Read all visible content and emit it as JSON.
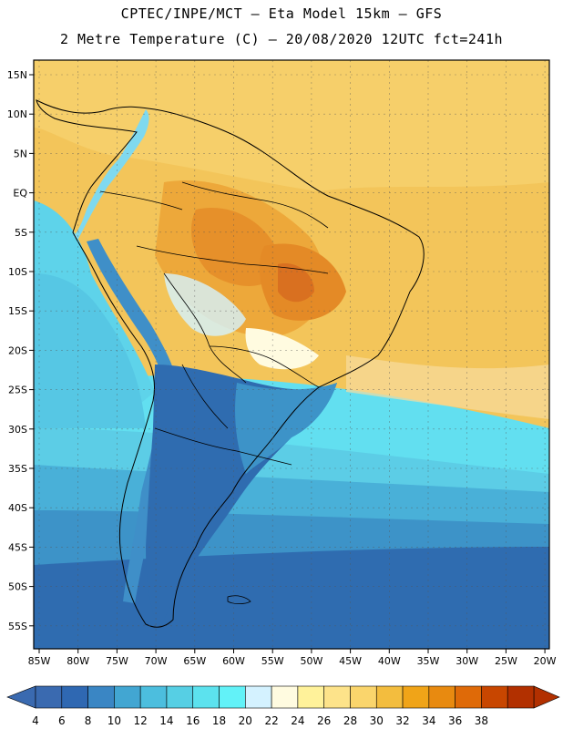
{
  "header": {
    "line1": "CPTEC/INPE/MCT –  Eta Model 15km – GFS",
    "line2": "2 Metre Temperature (C) – 20/08/2020 12UTC fct=241h"
  },
  "map": {
    "lat_labels": [
      "15N",
      "10N",
      "5N",
      "EQ",
      "5S",
      "10S",
      "15S",
      "20S",
      "25S",
      "30S",
      "35S",
      "40S",
      "45S",
      "50S",
      "55S"
    ],
    "lon_labels": [
      "85W",
      "80W",
      "75W",
      "70W",
      "65W",
      "60W",
      "55W",
      "50W",
      "45W",
      "40W",
      "35W",
      "30W",
      "25W",
      "20W"
    ]
  },
  "legend": {
    "values": [
      "4",
      "6",
      "8",
      "10",
      "12",
      "14",
      "16",
      "18",
      "20",
      "22",
      "24",
      "26",
      "28",
      "30",
      "32",
      "34",
      "36",
      "38"
    ],
    "colors": [
      "#3a6ab0",
      "#2f68b2",
      "#3a86c4",
      "#42a6d2",
      "#4cbede",
      "#56cfe4",
      "#5ce2ee",
      "#62f2f8",
      "#d4f2ff",
      "#fffbe0",
      "#fff29a",
      "#fde38a",
      "#fad56c",
      "#f3bd3e",
      "#f0a418",
      "#e88a10",
      "#df6a08",
      "#c84600",
      "#b23000"
    ],
    "low_arrow_color": "#3a6ab0",
    "high_arrow_color": "#b23000"
  }
}
